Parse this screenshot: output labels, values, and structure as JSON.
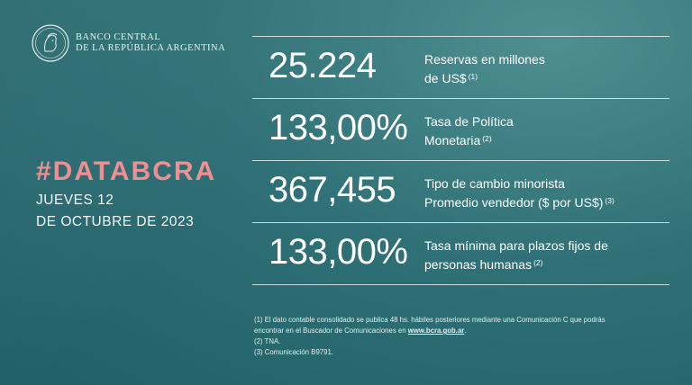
{
  "logo": {
    "line1": "BANCO CENTRAL",
    "line2": "DE LA REPÚBLICA ARGENTINA"
  },
  "headline": {
    "hashtag": "#DATABCRA",
    "date_line1": "JUEVES 12",
    "date_line2": "DE OCTUBRE DE 2023"
  },
  "indicators": [
    {
      "value": "25.224",
      "label_line1": "Reservas en millones",
      "label_line2": "de US$",
      "note": "(1)"
    },
    {
      "value": "133,00%",
      "label_line1": "Tasa de Política",
      "label_line2": "Monetaria",
      "note": "(2)"
    },
    {
      "value": "367,455",
      "label_line1": "Tipo de cambio minorista",
      "label_line2": "Promedio vendedor  ($ por US$)",
      "note": "(3)"
    },
    {
      "value": "133,00%",
      "label_line1": "Tasa mínima para plazos fijos de",
      "label_line2": "personas humanas",
      "note": "(2)"
    }
  ],
  "footnotes": {
    "note1_line1": "(1) El dato contable consolidado se publica 48 hs. hábiles posteriores mediante una Comunicación C que podrás",
    "note1_line2": "encontrar en el Buscador de Comunicaciones en",
    "note1_link": "www.bcra.gob.ar",
    "note1_end": ".",
    "note2": "(2) TNA.",
    "note3": "(3) Comunicación B9791."
  },
  "colors": {
    "background": "#2f7176",
    "accent": "#f08f93"
  }
}
